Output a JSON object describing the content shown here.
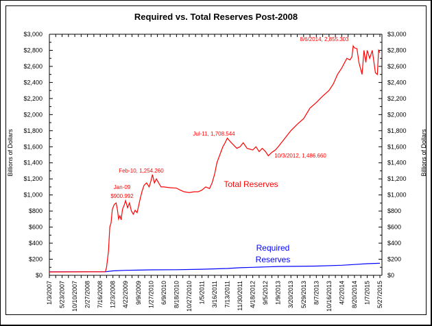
{
  "chart_data": {
    "type": "line",
    "title": "Required vs. Total Reserves Post-2008",
    "ylabel_left": "Billions of Dollars",
    "ylabel_right": "Billions of Dollars",
    "ylim": [
      0,
      3000
    ],
    "y_ticks": [
      "$0",
      "$200",
      "$400",
      "$600",
      "$800",
      "$1,000",
      "$1,200",
      "$1,400",
      "$1,600",
      "$1,800",
      "$2,000",
      "$2,200",
      "$2,400",
      "$2,600",
      "$2,800",
      "$3,000"
    ],
    "x_ticks": [
      "1/3/2007",
      "5/23/2007",
      "10/10/2007",
      "2/27/2008",
      "7/16/2008",
      "12/3/2008",
      "4/22/2009",
      "9/9/2009",
      "1/27/2010",
      "6/9/2010",
      "8/18/2010",
      "10/27/2010",
      "1/5/2011",
      "3/16/2011",
      "7/13/2011",
      "11/30/2011",
      "4/18/2012",
      "9/5/2012",
      "1/9/2013",
      "3/20/2013",
      "5/29/2013",
      "8/7/2013",
      "10/16/2013",
      "4/2/2014",
      "8/20/2014",
      "1/7/2015",
      "5/27/2015"
    ],
    "grid": false,
    "series": [
      {
        "name": "Total Reserves",
        "color": "#ff0000",
        "points": [
          [
            "2007-01-03",
            42
          ],
          [
            "2008-09-10",
            44
          ],
          [
            "2008-09-24",
            100
          ],
          [
            "2008-10-15",
            300
          ],
          [
            "2008-10-29",
            600
          ],
          [
            "2008-11-12",
            650
          ],
          [
            "2008-11-26",
            820
          ],
          [
            "2008-12-17",
            880
          ],
          [
            "2009-01-07",
            901
          ],
          [
            "2009-01-21",
            820
          ],
          [
            "2009-02-04",
            700
          ],
          [
            "2009-02-18",
            740
          ],
          [
            "2009-03-04",
            690
          ],
          [
            "2009-03-18",
            820
          ],
          [
            "2009-04-08",
            880
          ],
          [
            "2009-04-22",
            930
          ],
          [
            "2009-05-13",
            840
          ],
          [
            "2009-06-03",
            900
          ],
          [
            "2009-06-24",
            800
          ],
          [
            "2009-07-15",
            760
          ],
          [
            "2009-08-05",
            810
          ],
          [
            "2009-08-26",
            780
          ],
          [
            "2009-09-09",
            850
          ],
          [
            "2009-09-30",
            960
          ],
          [
            "2009-10-21",
            1050
          ],
          [
            "2009-11-11",
            1120
          ],
          [
            "2009-12-09",
            1150
          ],
          [
            "2010-01-06",
            1100
          ],
          [
            "2010-01-27",
            1180
          ],
          [
            "2010-02-10",
            1254
          ],
          [
            "2010-03-03",
            1150
          ],
          [
            "2010-03-24",
            1200
          ],
          [
            "2010-04-21",
            1140
          ],
          [
            "2010-05-12",
            1100
          ],
          [
            "2010-06-09",
            1100
          ],
          [
            "2010-07-14",
            1090
          ],
          [
            "2010-08-18",
            1085
          ],
          [
            "2010-09-08",
            1060
          ],
          [
            "2010-09-29",
            1040
          ],
          [
            "2010-10-27",
            1030
          ],
          [
            "2010-11-24",
            1040
          ],
          [
            "2010-12-15",
            1040
          ],
          [
            "2011-01-05",
            1060
          ],
          [
            "2011-01-26",
            1100
          ],
          [
            "2011-02-16",
            1080
          ],
          [
            "2011-03-02",
            1150
          ],
          [
            "2011-03-16",
            1260
          ],
          [
            "2011-04-06",
            1400
          ],
          [
            "2011-05-04",
            1500
          ],
          [
            "2011-06-01",
            1600
          ],
          [
            "2011-06-22",
            1650
          ],
          [
            "2011-07-13",
            1708
          ],
          [
            "2011-08-17",
            1660
          ],
          [
            "2011-09-21",
            1620
          ],
          [
            "2011-10-26",
            1580
          ],
          [
            "2011-11-30",
            1600
          ],
          [
            "2012-01-04",
            1650
          ],
          [
            "2012-02-15",
            1580
          ],
          [
            "2012-04-18",
            1560
          ],
          [
            "2012-05-23",
            1600
          ],
          [
            "2012-06-27",
            1540
          ],
          [
            "2012-08-01",
            1580
          ],
          [
            "2012-09-05",
            1540
          ],
          [
            "2012-10-03",
            1487
          ],
          [
            "2012-11-07",
            1530
          ],
          [
            "2012-12-12",
            1560
          ],
          [
            "2013-01-09",
            1600
          ],
          [
            "2013-02-13",
            1700
          ],
          [
            "2013-03-20",
            1800
          ],
          [
            "2013-04-24",
            1880
          ],
          [
            "2013-05-29",
            1950
          ],
          [
            "2013-07-03",
            2080
          ],
          [
            "2013-08-07",
            2150
          ],
          [
            "2013-09-11",
            2230
          ],
          [
            "2013-10-16",
            2300
          ],
          [
            "2013-12-11",
            2380
          ],
          [
            "2014-02-05",
            2500
          ],
          [
            "2014-04-02",
            2580
          ],
          [
            "2014-05-28",
            2700
          ],
          [
            "2014-07-02",
            2680
          ],
          [
            "2014-07-23",
            2720
          ],
          [
            "2014-08-06",
            2855
          ],
          [
            "2014-08-20",
            2830
          ],
          [
            "2014-09-17",
            2820
          ],
          [
            "2014-10-08",
            2650
          ],
          [
            "2014-11-12",
            2500
          ],
          [
            "2014-12-03",
            2800
          ],
          [
            "2014-12-24",
            2650
          ],
          [
            "2015-01-07",
            2800
          ],
          [
            "2015-02-04",
            2700
          ],
          [
            "2015-03-04",
            2800
          ],
          [
            "2015-04-08",
            2520
          ],
          [
            "2015-04-29",
            2500
          ],
          [
            "2015-05-13",
            2800
          ],
          [
            "2015-05-27",
            2770
          ]
        ]
      },
      {
        "name": "Required Reserves",
        "color": "#0000ff",
        "points": [
          [
            "2007-01-03",
            44
          ],
          [
            "2008-09-10",
            44
          ],
          [
            "2008-12-03",
            55
          ],
          [
            "2009-04-22",
            62
          ],
          [
            "2009-09-09",
            65
          ],
          [
            "2010-01-27",
            68
          ],
          [
            "2010-08-18",
            70
          ],
          [
            "2011-01-05",
            76
          ],
          [
            "2011-07-13",
            85
          ],
          [
            "2011-11-30",
            95
          ],
          [
            "2012-04-18",
            100
          ],
          [
            "2012-09-05",
            105
          ],
          [
            "2013-01-09",
            110
          ],
          [
            "2013-08-07",
            115
          ],
          [
            "2014-04-02",
            125
          ],
          [
            "2014-08-20",
            135
          ],
          [
            "2015-01-07",
            145
          ],
          [
            "2015-05-27",
            150
          ]
        ]
      }
    ],
    "annotations": [
      {
        "text": "Jan-09",
        "color": "#ff0000"
      },
      {
        "text": "$900.992",
        "color": "#ff0000"
      },
      {
        "text": "Feb-10, 1,254.260",
        "color": "#ff0000"
      },
      {
        "text": "Jul-11, 1,708.544",
        "color": "#ff0000"
      },
      {
        "text": "10/3/2012, 1,486.660",
        "color": "#ff0000"
      },
      {
        "text": "8/6/2014, 2,855.303",
        "color": "#ff0000"
      },
      {
        "text": "Total Reserves",
        "color": "#ff0000"
      },
      {
        "text": "Required",
        "color": "#0000ff"
      },
      {
        "text": "Reserves",
        "color": "#0000ff"
      }
    ]
  }
}
